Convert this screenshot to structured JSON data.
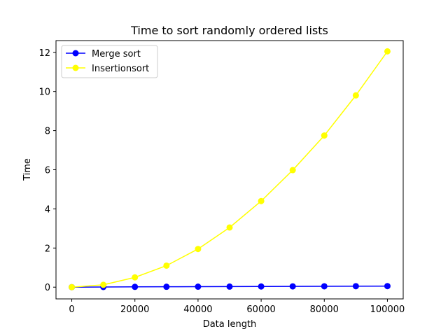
{
  "chart_data": {
    "type": "line",
    "title": "Time to sort randomly ordered lists",
    "xlabel": "Data length",
    "ylabel": "Time",
    "x": [
      0,
      10000,
      20000,
      30000,
      40000,
      50000,
      60000,
      70000,
      80000,
      90000,
      100000
    ],
    "xlim": [
      -5000,
      105000
    ],
    "ylim": [
      -0.6,
      12.6
    ],
    "xticks": [
      0,
      20000,
      40000,
      60000,
      80000,
      100000
    ],
    "yticks": [
      0,
      2,
      4,
      6,
      8,
      10,
      12
    ],
    "grid": false,
    "legend_position": "top-left",
    "series": [
      {
        "name": "Merge sort",
        "color": "#0000ff",
        "marker": "circle",
        "values": [
          0.0,
          0.01,
          0.015,
          0.02,
          0.025,
          0.03,
          0.035,
          0.04,
          0.045,
          0.05,
          0.055
        ]
      },
      {
        "name": "Insertionsort",
        "color": "#ffff00",
        "marker": "circle",
        "values": [
          0.0,
          0.12,
          0.5,
          1.1,
          1.95,
          3.05,
          4.4,
          5.98,
          7.75,
          9.8,
          12.05
        ]
      }
    ]
  }
}
